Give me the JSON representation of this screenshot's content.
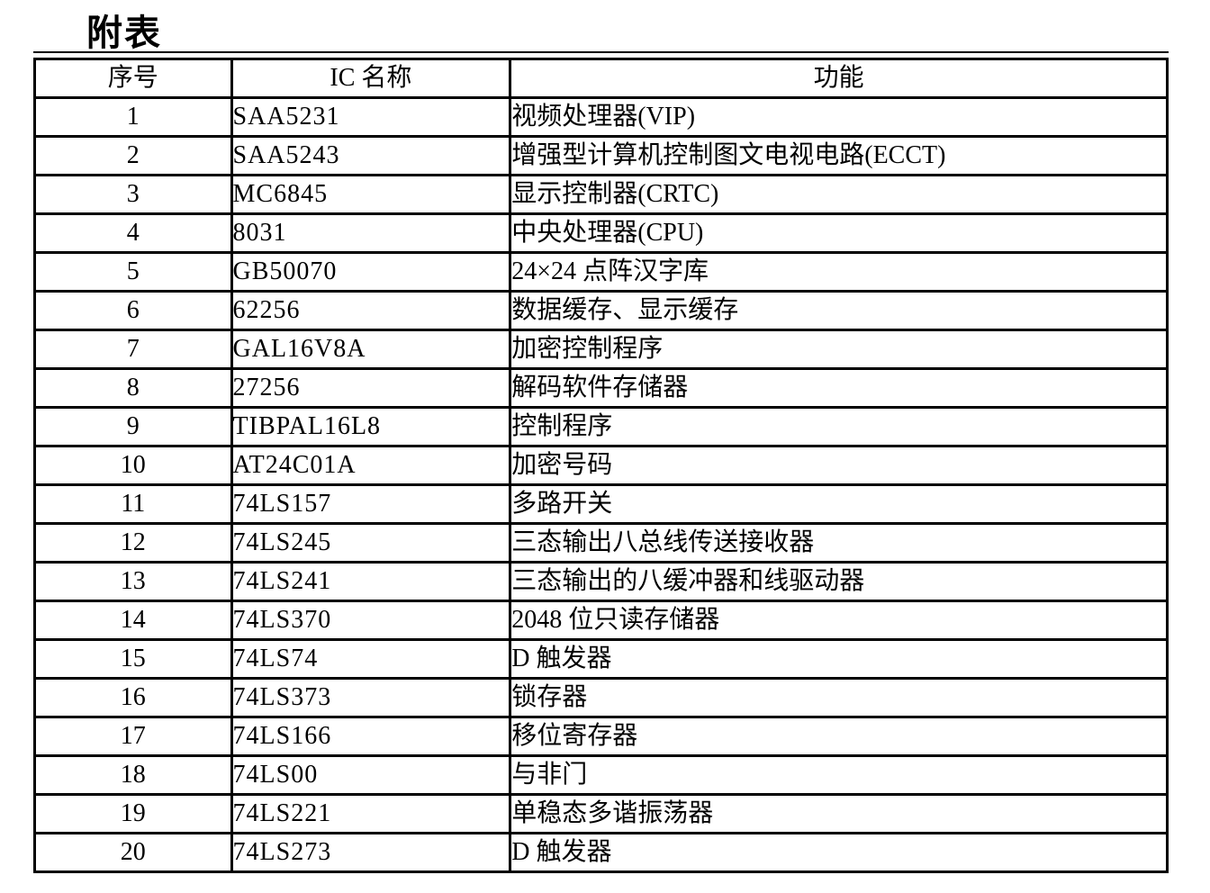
{
  "page": {
    "title": "附表"
  },
  "table": {
    "headers": [
      "序号",
      "IC 名称",
      "功能"
    ],
    "rows": [
      {
        "no": "1",
        "ic": "SAA5231",
        "func": "视频处理器(VIP)"
      },
      {
        "no": "2",
        "ic": "SAA5243",
        "func": "增强型计算机控制图文电视电路(ECCT)"
      },
      {
        "no": "3",
        "ic": "MC6845",
        "func": "显示控制器(CRTC)"
      },
      {
        "no": "4",
        "ic": "8031",
        "func": "中央处理器(CPU)"
      },
      {
        "no": "5",
        "ic": "GB50070",
        "func": "24×24 点阵汉字库"
      },
      {
        "no": "6",
        "ic": "62256",
        "func": "数据缓存、显示缓存"
      },
      {
        "no": "7",
        "ic": "GAL16V8A",
        "func": "加密控制程序"
      },
      {
        "no": "8",
        "ic": "27256",
        "func": "解码软件存储器"
      },
      {
        "no": "9",
        "ic": "TIBPAL16L8",
        "func": "控制程序"
      },
      {
        "no": "10",
        "ic": "AT24C01A",
        "func": "加密号码"
      },
      {
        "no": "11",
        "ic": "74LS157",
        "func": "多路开关"
      },
      {
        "no": "12",
        "ic": "74LS245",
        "func": "三态输出八总线传送接收器"
      },
      {
        "no": "13",
        "ic": "74LS241",
        "func": "三态输出的八缓冲器和线驱动器"
      },
      {
        "no": "14",
        "ic": "74LS370",
        "func": "2048 位只读存储器"
      },
      {
        "no": "15",
        "ic": "74LS74",
        "func": "D 触发器"
      },
      {
        "no": "16",
        "ic": "74LS373",
        "func": "锁存器"
      },
      {
        "no": "17",
        "ic": "74LS166",
        "func": "移位寄存器"
      },
      {
        "no": "18",
        "ic": "74LS00",
        "func": "与非门"
      },
      {
        "no": "19",
        "ic": "74LS221",
        "func": "单稳态多谐振荡器"
      },
      {
        "no": "20",
        "ic": "74LS273",
        "func": "D 触发器"
      }
    ]
  }
}
